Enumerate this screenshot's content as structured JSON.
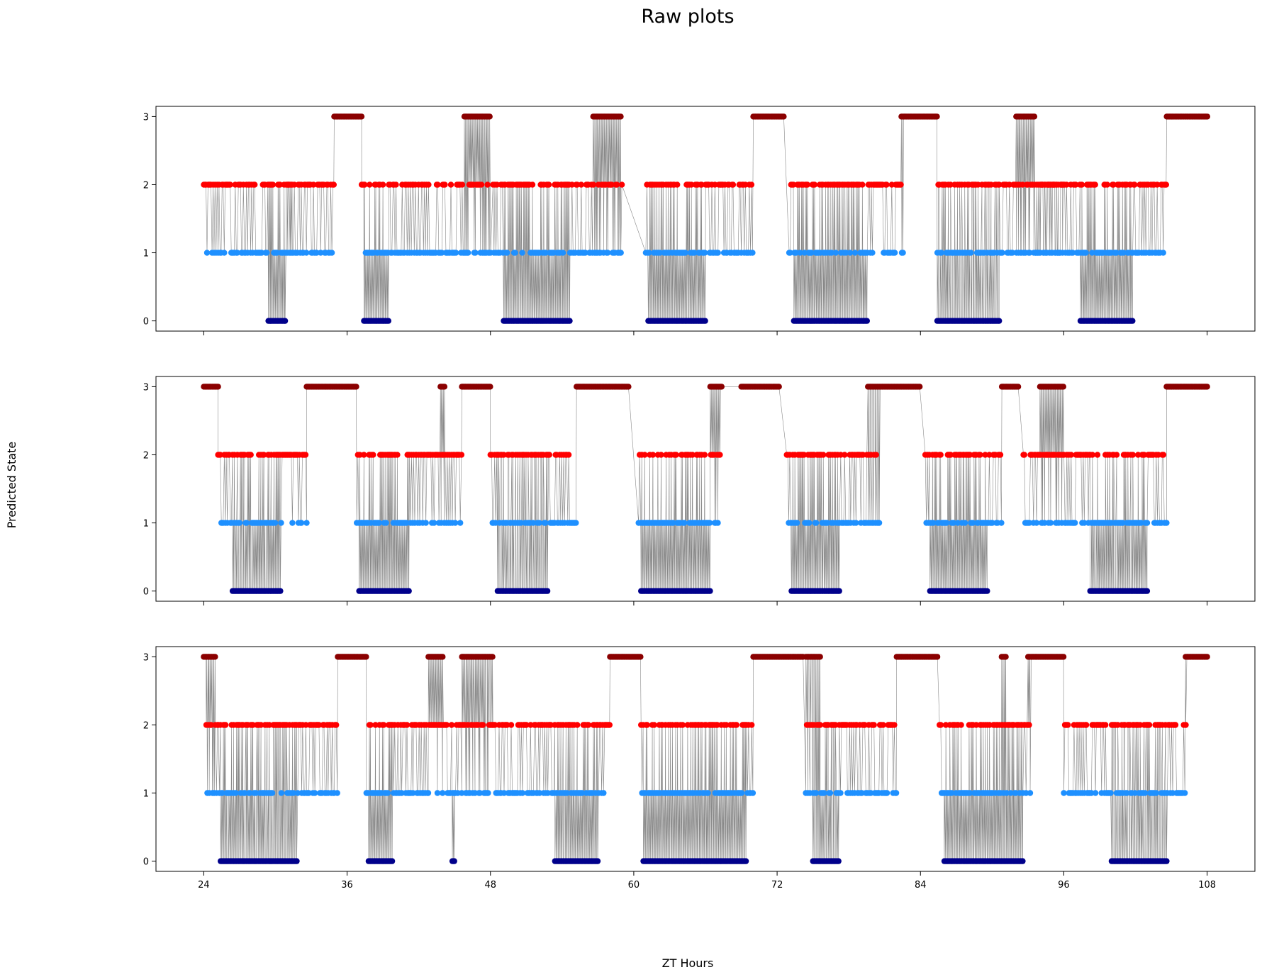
{
  "chart_data": {
    "type": "scatter",
    "title": "Raw plots",
    "xlabel": "ZT Hours",
    "ylabel": "Predicted State",
    "xlim": [
      20,
      112
    ],
    "ylim": [
      -0.15,
      3.15
    ],
    "xticks": [
      24,
      36,
      48,
      60,
      72,
      84,
      96,
      108
    ],
    "yticks": [
      0,
      1,
      2,
      3
    ],
    "state_colors": {
      "0": "#00008b",
      "1": "#1e90ff",
      "2": "#ff0000",
      "3": "#8b0000"
    },
    "line_color": "#555555",
    "grid": false,
    "legend": "none",
    "panels": [
      {
        "name": "panel-1",
        "segments": [
          {
            "start": 24.0,
            "end": 34.9,
            "states": [
              1,
              2
            ]
          },
          {
            "start": 29.4,
            "end": 30.8,
            "states": [
              0
            ]
          },
          {
            "start": 30.8,
            "end": 31.4,
            "states": [
              1,
              2,
              0
            ]
          },
          {
            "start": 34.9,
            "end": 37.2,
            "states": [
              3
            ]
          },
          {
            "start": 37.2,
            "end": 48.0,
            "states": [
              1,
              2
            ]
          },
          {
            "start": 37.4,
            "end": 39.5,
            "states": [
              0
            ]
          },
          {
            "start": 45.8,
            "end": 48.0,
            "states": [
              3
            ]
          },
          {
            "start": 48.2,
            "end": 59.0,
            "states": [
              1,
              2
            ]
          },
          {
            "start": 49.1,
            "end": 54.7,
            "states": [
              0
            ]
          },
          {
            "start": 56.6,
            "end": 58.9,
            "states": [
              3
            ]
          },
          {
            "start": 61.0,
            "end": 70.0,
            "states": [
              1,
              2
            ]
          },
          {
            "start": 61.2,
            "end": 66.0,
            "states": [
              0
            ]
          },
          {
            "start": 70.0,
            "end": 72.6,
            "states": [
              3
            ]
          },
          {
            "start": 73.0,
            "end": 82.6,
            "states": [
              1,
              2
            ]
          },
          {
            "start": 73.4,
            "end": 79.6,
            "states": [
              0
            ]
          },
          {
            "start": 82.4,
            "end": 85.4,
            "states": [
              3
            ]
          },
          {
            "start": 85.4,
            "end": 96.0,
            "states": [
              1,
              2
            ]
          },
          {
            "start": 85.4,
            "end": 90.6,
            "states": [
              0
            ]
          },
          {
            "start": 92.0,
            "end": 93.6,
            "states": [
              3
            ]
          },
          {
            "start": 93.6,
            "end": 104.6,
            "states": [
              1,
              2
            ]
          },
          {
            "start": 97.4,
            "end": 101.8,
            "states": [
              0
            ]
          },
          {
            "start": 104.6,
            "end": 108.0,
            "states": [
              3
            ]
          }
        ]
      },
      {
        "name": "panel-2",
        "segments": [
          {
            "start": 24.0,
            "end": 25.2,
            "states": [
              3
            ]
          },
          {
            "start": 25.2,
            "end": 32.6,
            "states": [
              1,
              2
            ]
          },
          {
            "start": 26.4,
            "end": 30.4,
            "states": [
              0
            ]
          },
          {
            "start": 32.6,
            "end": 36.8,
            "states": [
              3
            ]
          },
          {
            "start": 36.8,
            "end": 45.6,
            "states": [
              1,
              2
            ]
          },
          {
            "start": 37.0,
            "end": 41.2,
            "states": [
              0
            ]
          },
          {
            "start": 43.8,
            "end": 44.2,
            "states": [
              3
            ]
          },
          {
            "start": 45.6,
            "end": 48.0,
            "states": [
              3
            ]
          },
          {
            "start": 48.0,
            "end": 55.2,
            "states": [
              1,
              2
            ]
          },
          {
            "start": 48.6,
            "end": 52.8,
            "states": [
              0
            ]
          },
          {
            "start": 55.2,
            "end": 59.6,
            "states": [
              3
            ]
          },
          {
            "start": 60.4,
            "end": 67.2,
            "states": [
              1,
              2
            ]
          },
          {
            "start": 60.6,
            "end": 66.4,
            "states": [
              0
            ]
          },
          {
            "start": 66.4,
            "end": 67.4,
            "states": [
              3
            ]
          },
          {
            "start": 69.0,
            "end": 72.2,
            "states": [
              3
            ]
          },
          {
            "start": 72.8,
            "end": 80.6,
            "states": [
              1,
              2
            ]
          },
          {
            "start": 73.2,
            "end": 77.2,
            "states": [
              0
            ]
          },
          {
            "start": 79.6,
            "end": 84.0,
            "states": [
              3
            ]
          },
          {
            "start": 84.4,
            "end": 90.8,
            "states": [
              1,
              2
            ]
          },
          {
            "start": 84.8,
            "end": 89.6,
            "states": [
              0
            ]
          },
          {
            "start": 90.8,
            "end": 92.2,
            "states": [
              3
            ]
          },
          {
            "start": 92.6,
            "end": 104.6,
            "states": [
              1,
              2
            ]
          },
          {
            "start": 98.2,
            "end": 103.0,
            "states": [
              0
            ]
          },
          {
            "start": 94.0,
            "end": 96.0,
            "states": [
              3
            ]
          },
          {
            "start": 104.6,
            "end": 108.0,
            "states": [
              3
            ]
          }
        ]
      },
      {
        "name": "panel-3",
        "segments": [
          {
            "start": 24.0,
            "end": 25.0,
            "states": [
              3
            ]
          },
          {
            "start": 24.2,
            "end": 35.2,
            "states": [
              1,
              2
            ]
          },
          {
            "start": 25.4,
            "end": 31.8,
            "states": [
              0
            ]
          },
          {
            "start": 35.2,
            "end": 37.6,
            "states": [
              3
            ]
          },
          {
            "start": 37.6,
            "end": 48.2,
            "states": [
              1,
              2
            ]
          },
          {
            "start": 37.8,
            "end": 39.8,
            "states": [
              0
            ]
          },
          {
            "start": 44.8,
            "end": 45.0,
            "states": [
              0
            ]
          },
          {
            "start": 42.8,
            "end": 44.0,
            "states": [
              3
            ]
          },
          {
            "start": 45.6,
            "end": 48.2,
            "states": [
              3
            ]
          },
          {
            "start": 48.2,
            "end": 58.0,
            "states": [
              1,
              2
            ]
          },
          {
            "start": 53.4,
            "end": 57.0,
            "states": [
              0
            ]
          },
          {
            "start": 58.0,
            "end": 60.6,
            "states": [
              3
            ]
          },
          {
            "start": 60.6,
            "end": 70.0,
            "states": [
              1,
              2
            ]
          },
          {
            "start": 60.8,
            "end": 69.4,
            "states": [
              0
            ]
          },
          {
            "start": 70.0,
            "end": 74.2,
            "states": [
              3
            ]
          },
          {
            "start": 74.4,
            "end": 82.0,
            "states": [
              1,
              2
            ]
          },
          {
            "start": 74.4,
            "end": 75.6,
            "states": [
              3
            ]
          },
          {
            "start": 75.0,
            "end": 77.2,
            "states": [
              0
            ]
          },
          {
            "start": 82.0,
            "end": 85.4,
            "states": [
              3
            ]
          },
          {
            "start": 85.6,
            "end": 93.2,
            "states": [
              1,
              2
            ]
          },
          {
            "start": 86.0,
            "end": 92.6,
            "states": [
              0
            ]
          },
          {
            "start": 90.8,
            "end": 91.2,
            "states": [
              3
            ]
          },
          {
            "start": 93.0,
            "end": 96.0,
            "states": [
              3
            ]
          },
          {
            "start": 96.0,
            "end": 106.2,
            "states": [
              1,
              2
            ]
          },
          {
            "start": 100.0,
            "end": 104.6,
            "states": [
              0
            ]
          },
          {
            "start": 106.2,
            "end": 108.0,
            "states": [
              3
            ]
          }
        ]
      }
    ]
  }
}
